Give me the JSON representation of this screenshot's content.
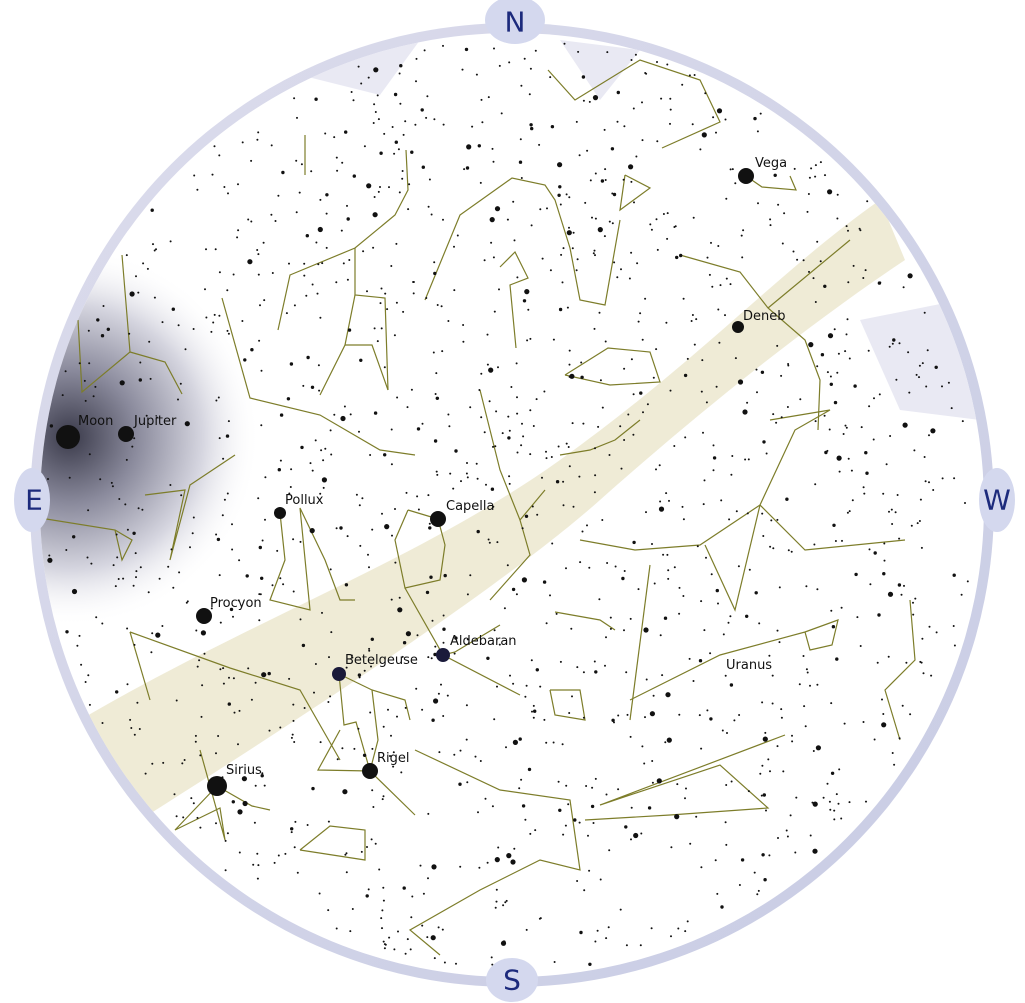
{
  "compass": {
    "north": "N",
    "east": "E",
    "west": "W",
    "south": "S"
  },
  "objects": [
    "Vega",
    "Deneb",
    "Moon",
    "Jupiter",
    "Pollux",
    "Capella",
    "Procyon",
    "Aldebaran",
    "Betelgeuse",
    "Uranus",
    "Rigel",
    "Sirius"
  ]
}
